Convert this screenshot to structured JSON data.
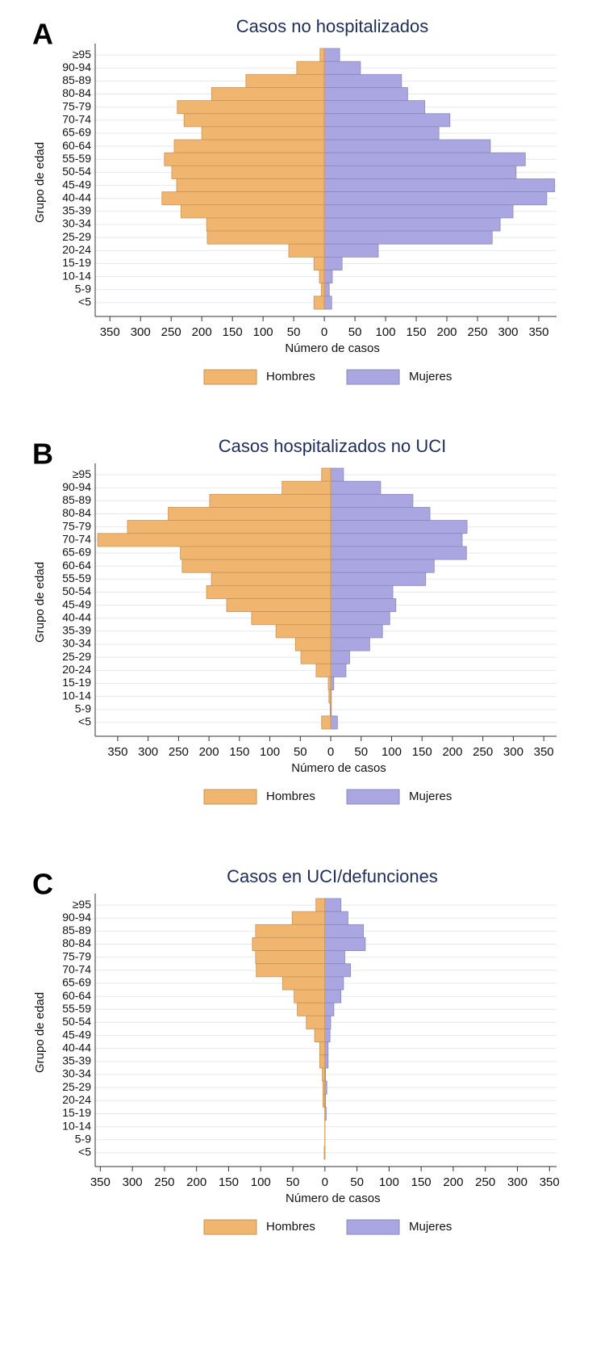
{
  "chart_data": [
    {
      "type": "pyramid",
      "panel_label": "A",
      "title": "Casos no hospitalizados",
      "y_label": "Grupo de edad",
      "x_label": "Número de casos",
      "legend": "bottom",
      "grid": true,
      "categories": [
        "≥95",
        "90-94",
        "85-89",
        "80-84",
        "75-79",
        "70-74",
        "65-69",
        "60-64",
        "55-59",
        "50-54",
        "45-49",
        "40-44",
        "35-39",
        "30-34",
        "25-29",
        "20-24",
        "15-19",
        "10-14",
        "5-9",
        "<5"
      ],
      "series": [
        {
          "name": "Hombres",
          "color": "#f0b56f",
          "side": "left",
          "values": [
            7,
            45,
            128,
            184,
            240,
            229,
            200,
            245,
            261,
            249,
            241,
            265,
            234,
            192,
            191,
            58,
            17,
            8,
            5,
            17
          ]
        },
        {
          "name": "Mujeres",
          "color": "#aaa6e2",
          "side": "right",
          "values": [
            25,
            59,
            126,
            136,
            164,
            205,
            187,
            271,
            328,
            313,
            376,
            363,
            308,
            287,
            274,
            88,
            29,
            13,
            8,
            12
          ]
        }
      ],
      "xlim": [
        -374,
        379
      ],
      "xticks": [
        {
          "value": -350,
          "label": "350"
        },
        {
          "value": -300,
          "label": "300"
        },
        {
          "value": -250,
          "label": "250"
        },
        {
          "value": -200,
          "label": "200"
        },
        {
          "value": -150,
          "label": "150"
        },
        {
          "value": -100,
          "label": "100"
        },
        {
          "value": -50,
          "label": "50"
        },
        0,
        50,
        100,
        150,
        200,
        250,
        300,
        350
      ]
    },
    {
      "type": "pyramid",
      "panel_label": "B",
      "title": "Casos hospitalizados no UCI",
      "y_label": "Grupo de edad",
      "x_label": "Número de casos",
      "legend": "bottom",
      "grid": true,
      "categories": [
        "≥95",
        "90-94",
        "85-89",
        "80-84",
        "75-79",
        "70-74",
        "65-69",
        "60-64",
        "55-59",
        "50-54",
        "45-49",
        "40-44",
        "35-39",
        "30-34",
        "25-29",
        "20-24",
        "15-19",
        "10-14",
        "5-9",
        "<5"
      ],
      "series": [
        {
          "name": "Hombres",
          "color": "#f0b56f",
          "side": "left",
          "values": [
            15,
            80,
            199,
            267,
            334,
            383,
            247,
            244,
            196,
            204,
            171,
            130,
            90,
            58,
            49,
            24,
            4,
            3,
            1,
            15
          ]
        },
        {
          "name": "Mujeres",
          "color": "#aaa6e2",
          "side": "right",
          "values": [
            21,
            82,
            135,
            163,
            224,
            216,
            223,
            170,
            156,
            102,
            107,
            97,
            85,
            64,
            31,
            25,
            5,
            1,
            1,
            11
          ]
        }
      ],
      "xlim": [
        -387,
        371
      ],
      "xticks": [
        {
          "value": -350,
          "label": "350"
        },
        {
          "value": -300,
          "label": "300"
        },
        {
          "value": -250,
          "label": "250"
        },
        {
          "value": -200,
          "label": "200"
        },
        {
          "value": -150,
          "label": "150"
        },
        {
          "value": -100,
          "label": "100"
        },
        {
          "value": -50,
          "label": "50"
        },
        0,
        50,
        100,
        150,
        200,
        250,
        300,
        350
      ]
    },
    {
      "type": "pyramid",
      "panel_label": "C",
      "title": "Casos en UCI/defunciones",
      "y_label": "Grupo de edad",
      "x_label": "Número de casos",
      "legend": "bottom",
      "grid": true,
      "categories": [
        "≥95",
        "90-94",
        "85-89",
        "80-84",
        "75-79",
        "70-74",
        "65-69",
        "60-64",
        "55-59",
        "50-54",
        "45-49",
        "40-44",
        "35-39",
        "30-34",
        "25-29",
        "20-24",
        "15-19",
        "10-14",
        "5-9",
        "<5"
      ],
      "series": [
        {
          "name": "Hombres",
          "color": "#f0b56f",
          "side": "left",
          "values": [
            14,
            51,
            108,
            113,
            108,
            107,
            66,
            48,
            43,
            29,
            16,
            8,
            8,
            4,
            3,
            3,
            0,
            0,
            0,
            1
          ]
        },
        {
          "name": "Mujeres",
          "color": "#aaa6e2",
          "side": "right",
          "values": [
            25,
            36,
            60,
            63,
            31,
            40,
            29,
            25,
            14,
            9,
            8,
            5,
            5,
            1,
            3,
            1,
            2,
            0,
            0,
            0
          ]
        }
      ],
      "xlim": [
        -358,
        361
      ],
      "xticks": [
        {
          "value": -350,
          "label": "350"
        },
        {
          "value": -300,
          "label": "300"
        },
        {
          "value": -250,
          "label": "250"
        },
        {
          "value": -200,
          "label": "200"
        },
        {
          "value": -150,
          "label": "150"
        },
        {
          "value": -100,
          "label": "100"
        },
        {
          "value": -50,
          "label": "50"
        },
        0,
        50,
        100,
        150,
        200,
        250,
        300,
        350
      ]
    }
  ]
}
